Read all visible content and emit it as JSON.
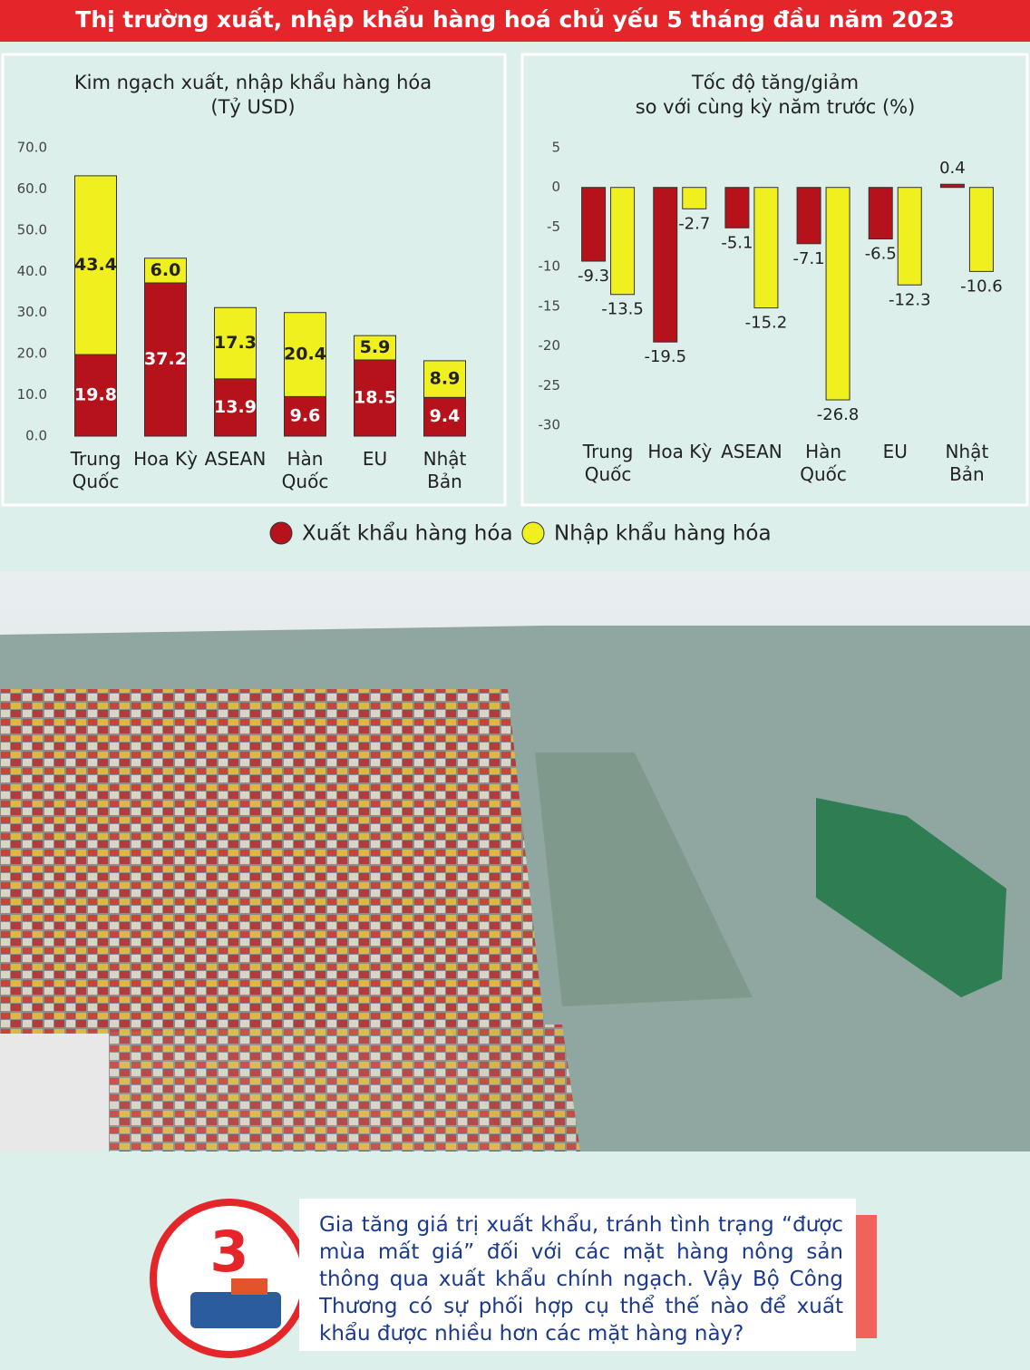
{
  "header": {
    "title": "Thị trường xuất, nhập khẩu hàng hoá chủ yếu 5 tháng đầu năm 2023"
  },
  "chart_data": [
    {
      "type": "bar",
      "stacked": true,
      "title": "Kim ngạch xuất, nhập khẩu hàng hóa",
      "subtitle": "(Tỷ USD)",
      "categories": [
        "Trung\nQuốc",
        "Hoa Kỳ",
        "ASEAN",
        "Hàn\nQuốc",
        "EU",
        "Nhật\nBản"
      ],
      "series": [
        {
          "name": "Xuất khẩu hàng hóa",
          "color": "#b5121b",
          "values": [
            19.8,
            37.2,
            13.9,
            9.6,
            18.5,
            9.4
          ]
        },
        {
          "name": "Nhập khẩu hàng hóa",
          "color": "#f0f01e",
          "values": [
            43.4,
            6.0,
            17.3,
            20.4,
            5.9,
            8.9
          ],
          "value_labels": [
            "43.4",
            "6.0",
            "17.3",
            "20.4",
            "5.9",
            "8.9"
          ]
        }
      ],
      "ylim": [
        0,
        70
      ],
      "yticks": [
        {
          "value": 0,
          "label": "0.0"
        },
        {
          "value": 10,
          "label": "10.0"
        },
        {
          "value": 20,
          "label": "20.0"
        },
        {
          "value": 30,
          "label": "30.0"
        },
        {
          "value": 40,
          "label": "40.0"
        },
        {
          "value": 50,
          "label": "50.0"
        },
        {
          "value": 60,
          "label": "60.0"
        },
        {
          "value": 70,
          "label": "70.0"
        }
      ]
    },
    {
      "type": "bar",
      "stacked": false,
      "title": "Tốc độ tăng/giảm",
      "subtitle": "so với cùng kỳ năm trước (%)",
      "categories": [
        "Trung\nQuốc",
        "Hoa Kỳ",
        "ASEAN",
        "Hàn\nQuốc",
        "EU",
        "Nhật\nBản"
      ],
      "series": [
        {
          "color": "#b5121b",
          "values": [
            -9.3,
            -19.5,
            -5.1,
            -7.1,
            -6.5,
            0.4
          ]
        },
        {
          "color": "#f0f01e",
          "values": [
            -13.5,
            -2.7,
            -15.2,
            -26.8,
            -12.3,
            -10.6
          ]
        }
      ],
      "ylim": [
        -30,
        5
      ],
      "yticks": [
        5,
        0,
        -5,
        -10,
        -15,
        -20,
        -25,
        -30
      ]
    }
  ],
  "question": {
    "number": "3",
    "text": "Gia tăng giá trị xuất khẩu, tránh tình trạng “được mùa mất giá” đối với các mặt hàng nông sản thông qua xuất khẩu chính ngạch. Vậy Bộ Công Thương có sự phối hợp cụ thể thế nào để xuất khẩu được nhiều hơn các mặt hàng này?"
  }
}
